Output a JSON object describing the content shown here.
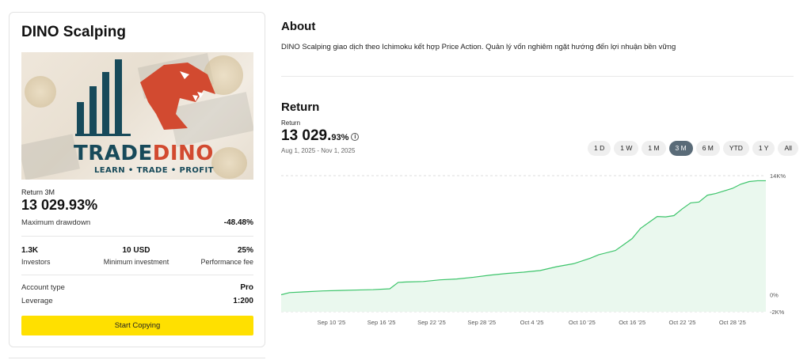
{
  "strategy": {
    "title": "DINO Scalping",
    "banner": {
      "brand_trade": "TRADE",
      "brand_dino": "DINO",
      "tagline": "LEARN • TRADE • PROFIT"
    },
    "return_label": "Return 3M",
    "return_value": "13 029.93%",
    "max_drawdown_label": "Maximum drawdown",
    "max_drawdown_value": "-48.48%",
    "stats": [
      {
        "value": "1.3K",
        "label": "Investors"
      },
      {
        "value": "10 USD",
        "label": "Minimum investment"
      },
      {
        "value": "25%",
        "label": "Performance fee"
      }
    ],
    "account_type_label": "Account type",
    "account_type_value": "Pro",
    "leverage_label": "Leverage",
    "leverage_value": "1:200",
    "copy_button": "Start Copying"
  },
  "about": {
    "heading": "About",
    "text": "DINO Scalping giao dịch theo Ichimoku kết hợp Price Action. Quản lý vốn nghiêm ngặt hướng đến lợi nhuận bền vững"
  },
  "returns": {
    "heading": "Return",
    "sub_label": "Return",
    "value_main": "13 029.",
    "value_small": "93%",
    "info_icon": "info-icon",
    "date_range": "Aug 1, 2025 - Nov 1, 2025",
    "periods": [
      "1 D",
      "1 W",
      "1 M",
      "3 M",
      "6 M",
      "YTD",
      "1 Y",
      "All"
    ],
    "active_period": "3 M"
  },
  "chart_data": {
    "type": "area",
    "color": "#3cc46a",
    "fill_color": "#eaf8ee",
    "x_ticks": [
      "Sep 10 '25",
      "Sep 16 '25",
      "Sep 22 '25",
      "Sep 28 '25",
      "Oct 4 '25",
      "Oct 10 '25",
      "Oct 16 '25",
      "Oct 22 '25",
      "Oct 28 '25"
    ],
    "y_ticks": [
      "14K%",
      "0%",
      "-2K%"
    ],
    "y_tick_values": [
      14000,
      0,
      -2000
    ],
    "ylim": [
      -2000,
      14000
    ],
    "grid": true,
    "x_start": "Sep 4 '25",
    "x_end": "Nov 1 '25",
    "series": [
      {
        "x": [
          "Sep 4 '25",
          "Sep 5 '25",
          "Sep 7 '25",
          "Sep 9 '25",
          "Sep 11 '25",
          "Sep 13 '25",
          "Sep 15 '25",
          "Sep 17 '25",
          "Sep 18 '25",
          "Sep 19 '25",
          "Sep 21 '25",
          "Sep 23 '25",
          "Sep 25 '25",
          "Sep 27 '25",
          "Sep 29 '25",
          "Oct 1 '25",
          "Oct 3 '25",
          "Oct 5 '25",
          "Oct 7 '25",
          "Oct 9 '25",
          "Oct 11 '25",
          "Oct 12 '25",
          "Oct 14 '25",
          "Oct 15 '25",
          "Oct 16 '25",
          "Oct 17 '25",
          "Oct 18 '25",
          "Oct 19 '25",
          "Oct 20 '25",
          "Oct 21 '25",
          "Oct 22 '25",
          "Oct 23 '25",
          "Oct 24 '25",
          "Oct 25 '25",
          "Oct 26 '25",
          "Oct 27 '25",
          "Oct 28 '25",
          "Oct 29 '25",
          "Oct 30 '25",
          "Oct 31 '25",
          "Nov 1 '25"
        ],
        "y": [
          0,
          250,
          350,
          450,
          500,
          550,
          600,
          700,
          1450,
          1500,
          1550,
          1750,
          1850,
          2050,
          2300,
          2500,
          2650,
          2850,
          3300,
          3650,
          4300,
          4700,
          5200,
          5900,
          6600,
          7800,
          8500,
          9200,
          9150,
          9300,
          10100,
          10800,
          10900,
          11700,
          11900,
          12200,
          12500,
          13000,
          13300,
          13400,
          13400
        ]
      }
    ]
  }
}
